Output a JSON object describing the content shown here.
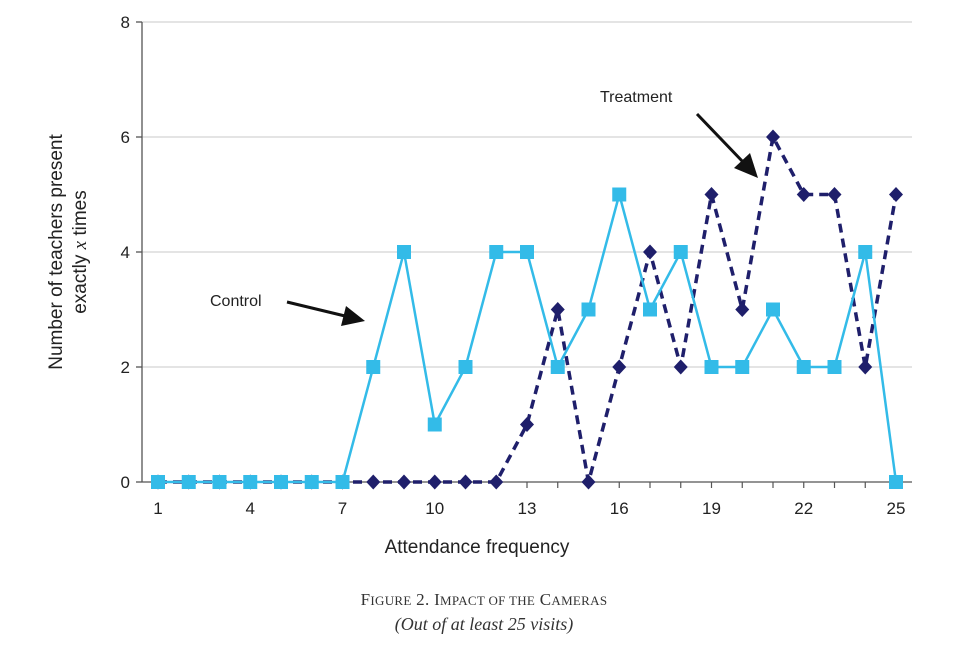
{
  "chart_data": {
    "type": "line",
    "xlabel": "Attendance frequency",
    "ylabel_line1": "Number of teachers present",
    "ylabel_line2_prefix": "exactly ",
    "ylabel_line2_var": "x",
    "ylabel_line2_suffix": " times",
    "xlim": [
      1,
      25
    ],
    "ylim": [
      0,
      8
    ],
    "x_ticks": [
      1,
      4,
      7,
      10,
      13,
      16,
      19,
      22,
      25
    ],
    "y_ticks": [
      0,
      2,
      4,
      6,
      8
    ],
    "grid": "horizontal",
    "x": [
      1,
      2,
      3,
      4,
      5,
      6,
      7,
      8,
      9,
      10,
      11,
      12,
      13,
      14,
      15,
      16,
      17,
      18,
      19,
      20,
      21,
      22,
      23,
      24,
      25
    ],
    "series": [
      {
        "name": "Treatment",
        "color": "#1f1f6b",
        "style": "dashed",
        "marker": "diamond",
        "values": [
          0,
          0,
          0,
          0,
          0,
          0,
          0,
          0,
          0,
          0,
          0,
          0,
          1,
          3,
          0,
          2,
          4,
          2,
          5,
          3,
          6,
          5,
          5,
          2,
          5
        ]
      },
      {
        "name": "Control",
        "color": "#33bbe8",
        "style": "solid",
        "marker": "square",
        "values": [
          0,
          0,
          0,
          0,
          0,
          0,
          0,
          2,
          4,
          1,
          2,
          4,
          4,
          2,
          3,
          5,
          3,
          4,
          2,
          2,
          3,
          2,
          2,
          4,
          0
        ]
      }
    ],
    "annotations": [
      {
        "text": "Treatment",
        "arrow_to_x": 20.4,
        "arrow_to_y": 5.4
      },
      {
        "text": "Control",
        "arrow_to_x": 7.7,
        "arrow_to_y": 2.85
      }
    ]
  },
  "caption": {
    "line1_F": "F",
    "line1_igure": "IGURE",
    "line1_num": " 2. ",
    "line1_I": "I",
    "line1_mpact": "MPACT OF THE",
    "line1_sp": " ",
    "line1_C": "C",
    "line1_ameras": "AMERAS",
    "line2": "(Out of at least 25 visits)"
  }
}
